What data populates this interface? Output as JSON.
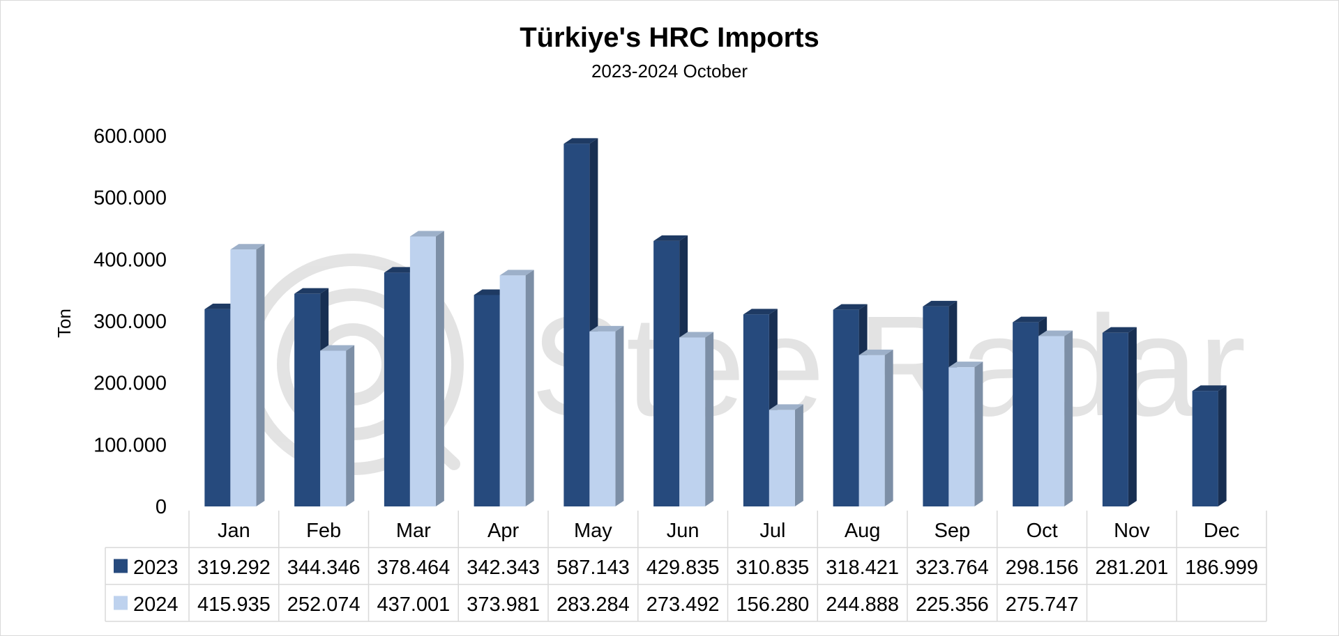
{
  "chart_data": {
    "type": "bar",
    "title": "Türkiye's HRC Imports",
    "subtitle": "2023-2024 October",
    "xlabel": "",
    "ylabel": "Ton",
    "ylim": [
      0,
      600000
    ],
    "yticks": [
      0,
      100000,
      200000,
      300000,
      400000,
      500000,
      600000
    ],
    "ytick_labels": [
      "0",
      "100.000",
      "200.000",
      "300.000",
      "400.000",
      "500.000",
      "600.000"
    ],
    "categories": [
      "Jan",
      "Feb",
      "Mar",
      "Apr",
      "May",
      "Jun",
      "Jul",
      "Aug",
      "Sep",
      "Oct",
      "Nov",
      "Dec"
    ],
    "series": [
      {
        "name": "2023",
        "color": "#264a7d",
        "values": [
          319292,
          344346,
          378464,
          342343,
          587143,
          429835,
          310835,
          318421,
          323764,
          298156,
          281201,
          186999
        ],
        "labels": [
          "319.292",
          "344.346",
          "378.464",
          "342.343",
          "587.143",
          "429.835",
          "310.835",
          "318.421",
          "323.764",
          "298.156",
          "281.201",
          "186.999"
        ]
      },
      {
        "name": "2024",
        "color": "#bed2ee",
        "values": [
          415935,
          252074,
          437001,
          373981,
          283284,
          273492,
          156280,
          244888,
          225356,
          275747,
          null,
          null
        ],
        "labels": [
          "415.935",
          "252.074",
          "437.001",
          "373.981",
          "283.284",
          "273.492",
          "156.280",
          "244.888",
          "225.356",
          "275.747",
          "",
          ""
        ]
      }
    ],
    "grid": false,
    "legend": "data-table",
    "style": "3d-clustered-column"
  },
  "watermark": {
    "text": "SteelRadar"
  }
}
